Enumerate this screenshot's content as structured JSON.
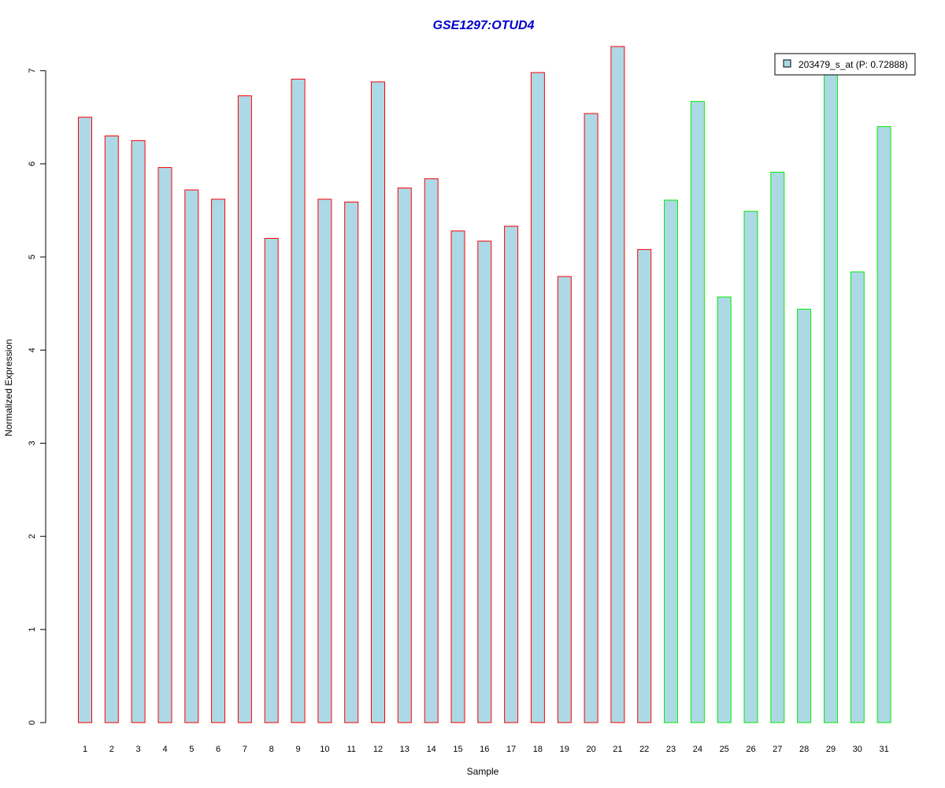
{
  "chart_data": {
    "type": "bar",
    "title": "GSE1297:OTUD4",
    "xlabel": "Sample",
    "ylabel": "Normalized Expression",
    "categories": [
      "1",
      "2",
      "3",
      "4",
      "5",
      "6",
      "7",
      "8",
      "9",
      "10",
      "11",
      "12",
      "13",
      "14",
      "15",
      "16",
      "17",
      "18",
      "19",
      "20",
      "21",
      "22",
      "23",
      "24",
      "25",
      "26",
      "27",
      "28",
      "29",
      "30",
      "31"
    ],
    "values": [
      6.5,
      6.3,
      6.25,
      5.96,
      5.72,
      5.62,
      6.73,
      5.2,
      6.91,
      5.62,
      5.59,
      6.88,
      5.74,
      5.84,
      5.28,
      5.17,
      5.33,
      6.98,
      4.79,
      6.54,
      7.26,
      5.08,
      5.61,
      6.67,
      4.57,
      5.49,
      5.91,
      4.44,
      6.99,
      4.84,
      6.4
    ],
    "group_of_bar": [
      1,
      1,
      1,
      1,
      1,
      1,
      1,
      1,
      1,
      1,
      1,
      1,
      1,
      1,
      1,
      1,
      1,
      1,
      1,
      1,
      1,
      1,
      2,
      2,
      2,
      2,
      2,
      2,
      2,
      2,
      2
    ],
    "ylim": [
      0,
      7.26
    ],
    "yticks": [
      "0",
      "1",
      "2",
      "3",
      "4",
      "5",
      "6",
      "7"
    ],
    "legend": {
      "label": "203479_s_at (P: 0.72888)",
      "position": "top-right"
    },
    "grid": false,
    "colors": {
      "title": "#0000cc",
      "bar_fill": "#add8e6",
      "group1_border": "#ff0000",
      "group2_border": "#00ee00",
      "axis": "#000000"
    }
  }
}
